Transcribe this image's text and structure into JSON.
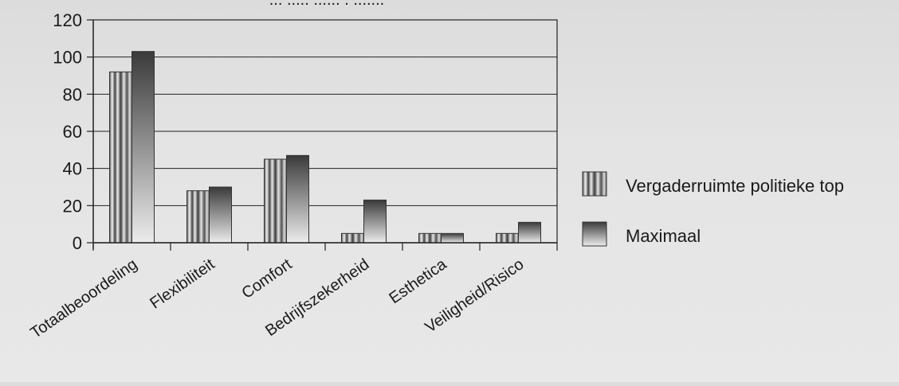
{
  "chart_data": {
    "type": "bar",
    "title": "... ..... ...... . .......",
    "xlabel": "",
    "ylabel": "",
    "categories": [
      "Totaalbeoordeling",
      "Flexibiliteit",
      "Comfort",
      "Bedrijfszekerheid",
      "Esthetica",
      "Veiligheid/Risico"
    ],
    "series": [
      {
        "name": "Vergaderruimte politieke top",
        "values": [
          92,
          28,
          45,
          5,
          5,
          5
        ]
      },
      {
        "name": "Maximaal",
        "values": [
          103,
          30,
          47,
          23,
          5,
          11
        ]
      }
    ],
    "ylim": [
      0,
      120
    ],
    "yticks": [
      0,
      20,
      40,
      60,
      80,
      100,
      120
    ],
    "grid": true,
    "legend_position": "right",
    "colors": {
      "series_1_light": "#f2f2f2",
      "series_1_dark": "#4a4a4a",
      "series_2_top": "#3a3a3a",
      "series_2_bottom": "#e8e8e8",
      "grid": "#222222"
    }
  }
}
